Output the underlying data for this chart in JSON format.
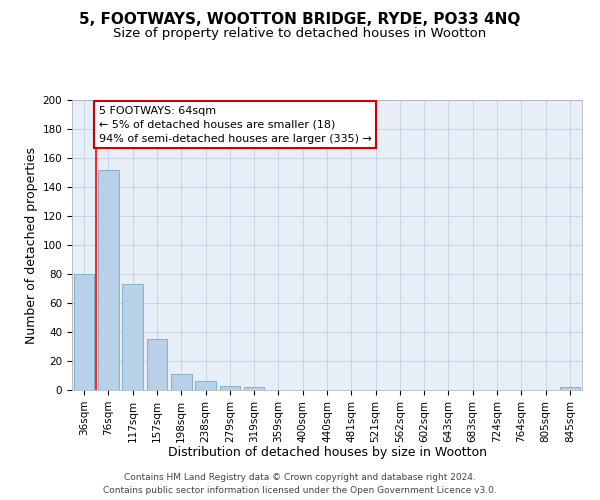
{
  "title": "5, FOOTWAYS, WOOTTON BRIDGE, RYDE, PO33 4NQ",
  "subtitle": "Size of property relative to detached houses in Wootton",
  "xlabel": "Distribution of detached houses by size in Wootton",
  "ylabel": "Number of detached properties",
  "bar_color": "#b8d0e8",
  "bar_edge_color": "#7aaac8",
  "categories": [
    "36sqm",
    "76sqm",
    "117sqm",
    "157sqm",
    "198sqm",
    "238sqm",
    "279sqm",
    "319sqm",
    "359sqm",
    "400sqm",
    "440sqm",
    "481sqm",
    "521sqm",
    "562sqm",
    "602sqm",
    "643sqm",
    "683sqm",
    "724sqm",
    "764sqm",
    "805sqm",
    "845sqm"
  ],
  "values": [
    80,
    152,
    73,
    35,
    11,
    6,
    3,
    2,
    0,
    0,
    0,
    0,
    0,
    0,
    0,
    0,
    0,
    0,
    0,
    0,
    2
  ],
  "ylim": [
    0,
    200
  ],
  "yticks": [
    0,
    20,
    40,
    60,
    80,
    100,
    120,
    140,
    160,
    180,
    200
  ],
  "red_line_x": 0.5,
  "annotation_line1": "5 FOOTWAYS: 64sqm",
  "annotation_line2": "← 5% of detached houses are smaller (18)",
  "annotation_line3": "94% of semi-detached houses are larger (335) →",
  "annotation_box_color": "#ffffff",
  "annotation_box_edge": "#cc0000",
  "footer_line1": "Contains HM Land Registry data © Crown copyright and database right 2024.",
  "footer_line2": "Contains public sector information licensed under the Open Government Licence v3.0.",
  "background_color": "#e8eef8",
  "grid_color": "#c8d4e4",
  "title_fontsize": 11,
  "subtitle_fontsize": 9.5,
  "axis_label_fontsize": 9,
  "tick_fontsize": 7.5,
  "footer_fontsize": 6.5,
  "annotation_fontsize": 8
}
